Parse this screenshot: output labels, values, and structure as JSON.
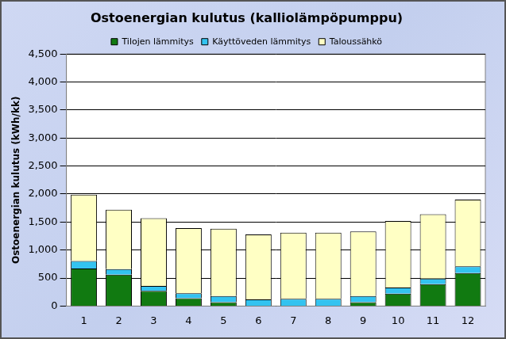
{
  "chart_data": {
    "type": "bar",
    "title": "Ostoenergian kulutus (kalliolämpöpumppu)",
    "y_label": "Ostoenergian kulutus (kWh/kk)",
    "categories": [
      "1",
      "2",
      "3",
      "4",
      "5",
      "6",
      "7",
      "8",
      "9",
      "10",
      "11",
      "12"
    ],
    "series": [
      {
        "name": "Tilojen lämmitys",
        "color": "#117a11",
        "values": [
          670,
          560,
          270,
          140,
          70,
          0,
          0,
          0,
          70,
          220,
          390,
          590
        ]
      },
      {
        "name": "Käyttöveden lämmitys",
        "color": "#33c3f0",
        "values": [
          135,
          100,
          90,
          90,
          110,
          120,
          130,
          130,
          110,
          110,
          100,
          120
        ]
      },
      {
        "name": "Taloussähkö",
        "color": "#ffffc4",
        "values": [
          1185,
          1060,
          1210,
          1160,
          1200,
          1160,
          1180,
          1180,
          1150,
          1190,
          1150,
          1190
        ]
      }
    ],
    "ylim": [
      0,
      4500
    ],
    "yticks": [
      0,
      500,
      {
        "value": 1000,
        "label": "1,000"
      },
      {
        "value": 1500,
        "label": "1,500"
      },
      {
        "value": 2000,
        "label": "2,000"
      },
      {
        "value": 2500,
        "label": "2,500"
      },
      {
        "value": 3000,
        "label": "3,000"
      },
      {
        "value": 3500,
        "label": "3,500"
      },
      {
        "value": 4000,
        "label": "4,000"
      },
      {
        "value": 4500,
        "label": "4,500"
      }
    ],
    "grid": true,
    "stacked": true,
    "legend": "top"
  }
}
